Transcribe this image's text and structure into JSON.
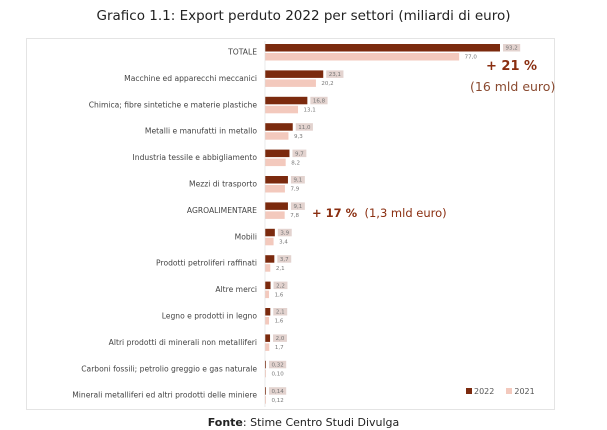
{
  "title": "Grafico 1.1: Export perduto 2022 per settori (miliardi di euro)",
  "footer": {
    "bold": "Fonte",
    "text": ": Stime Centro Studi Divulga"
  },
  "annotations": {
    "totale_pct": "+ 21 %",
    "totale_abs": "(16 mld euro)",
    "agro_pct": "+ 17 %",
    "agro_abs": "(1,3 mld euro)"
  },
  "chart_data": {
    "type": "bar",
    "orientation": "horizontal",
    "title": "Grafico 1.1: Export perduto 2022 per settori (miliardi di euro)",
    "categories": [
      "TOTALE",
      "Macchine ed apparecchi meccanici",
      "Chimica; fibre sintetiche e materie plastiche",
      "Metalli e manufatti in metallo",
      "Industria tessile e abbigliamento",
      "Mezzi di trasporto",
      "AGROALIMENTARE",
      "Mobili",
      "Prodotti petroliferi raffinati",
      "Altre merci",
      "Legno e prodotti in legno",
      "Altri prodotti di minerali non metalliferi",
      "Carboni fossili; petrolio greggio e gas naturale",
      "Minerali metalliferi ed altri prodotti delle miniere"
    ],
    "series": [
      {
        "name": "2022",
        "color": "#7b2a0e",
        "values": [
          93.2,
          23.1,
          16.8,
          11.0,
          9.7,
          9.1,
          9.1,
          3.9,
          3.7,
          2.2,
          2.1,
          2.0,
          0.32,
          0.14
        ],
        "labels": [
          "93,2",
          "23,1",
          "16,8",
          "11,0",
          "9,7",
          "9,1",
          "9,1",
          "3,9",
          "3,7",
          "2,2",
          "2,1",
          "2,0",
          "0,32",
          "0,14"
        ]
      },
      {
        "name": "2021",
        "color": "#f3c9bd",
        "values": [
          77.0,
          20.2,
          13.1,
          9.3,
          8.2,
          7.9,
          7.8,
          3.4,
          2.1,
          1.6,
          1.6,
          1.7,
          0.1,
          0.12
        ],
        "labels": [
          "77,0",
          "20,2",
          "13,1",
          "9,3",
          "8,2",
          "7,9",
          "7,8",
          "3,4",
          "2,1",
          "1,6",
          "1,6",
          "1,7",
          "0,10",
          "0,12"
        ]
      }
    ],
    "legend": "bottom-right",
    "grid": false
  }
}
